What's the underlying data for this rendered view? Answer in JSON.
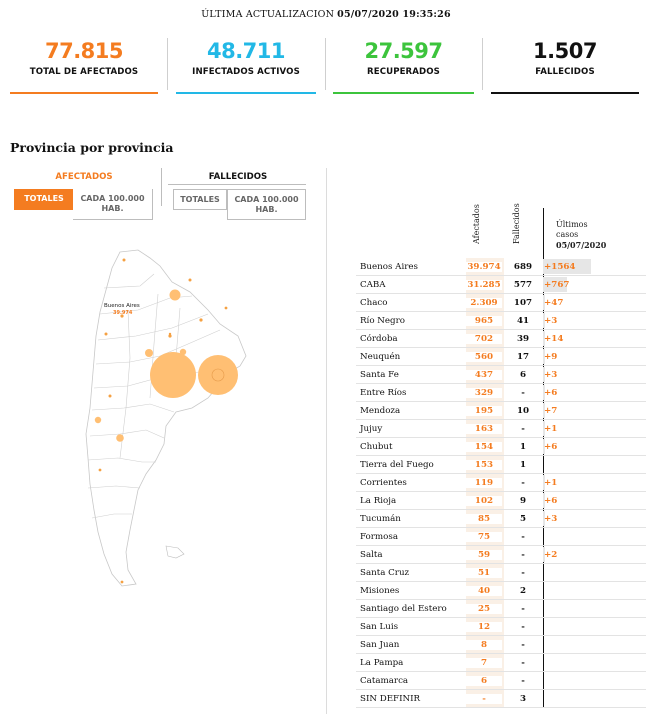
{
  "header": {
    "update_label": "ÚLTIMA ACTUALIZACION",
    "update_value": "05/07/2020 19:35:26"
  },
  "stats": [
    {
      "value": "77.815",
      "label": "TOTAL DE AFECTADOS",
      "color": "#f47c20"
    },
    {
      "value": "48.711",
      "label": "INFECTADOS ACTIVOS",
      "color": "#22b8e6"
    },
    {
      "value": "27.597",
      "label": "RECUPERADOS",
      "color": "#3cc43c"
    },
    {
      "value": "1.507",
      "label": "FALLECIDOS",
      "color": "#111111"
    }
  ],
  "section_title": "Provincia por provincia",
  "controls": {
    "afectados_label": "AFECTADOS",
    "fallecidos_label": "FALLECIDOS",
    "totales_label": "TOTALES",
    "per100k_line1": "CADA 100.000",
    "per100k_line2": "HAB."
  },
  "map": {
    "highlight_name": "Buenos Aires",
    "highlight_value": "39.974",
    "bubble_color": "#ffbf73",
    "dot_color": "#f5a142"
  },
  "table": {
    "headers": {
      "afectados": "Afectados",
      "fallecidos": "Fallecidos",
      "ultimos_line1": "Últimos",
      "ultimos_line2": "casos",
      "ultimos_date": "05/07/2020"
    },
    "rows": [
      {
        "name": "Buenos Aires",
        "afectados": "39.974",
        "fallecidos": "689",
        "nuevos": "+1564",
        "bar": 1564
      },
      {
        "name": "CABA",
        "afectados": "31.285",
        "fallecidos": "577",
        "nuevos": "+767",
        "bar": 767
      },
      {
        "name": "Chaco",
        "afectados": "2.309",
        "fallecidos": "107",
        "nuevos": "+47",
        "bar": 47
      },
      {
        "name": "Río Negro",
        "afectados": "965",
        "fallecidos": "41",
        "nuevos": "+3",
        "bar": 3
      },
      {
        "name": "Córdoba",
        "afectados": "702",
        "fallecidos": "39",
        "nuevos": "+14",
        "bar": 14
      },
      {
        "name": "Neuquén",
        "afectados": "560",
        "fallecidos": "17",
        "nuevos": "+9",
        "bar": 9
      },
      {
        "name": "Santa Fe",
        "afectados": "437",
        "fallecidos": "6",
        "nuevos": "+3",
        "bar": 3
      },
      {
        "name": "Entre Ríos",
        "afectados": "329",
        "fallecidos": "-",
        "nuevos": "+6",
        "bar": 6
      },
      {
        "name": "Mendoza",
        "afectados": "195",
        "fallecidos": "10",
        "nuevos": "+7",
        "bar": 7
      },
      {
        "name": "Jujuy",
        "afectados": "163",
        "fallecidos": "-",
        "nuevos": "+1",
        "bar": 1
      },
      {
        "name": "Chubut",
        "afectados": "154",
        "fallecidos": "1",
        "nuevos": "+6",
        "bar": 6
      },
      {
        "name": "Tierra del Fuego",
        "afectados": "153",
        "fallecidos": "1",
        "nuevos": "",
        "bar": 0
      },
      {
        "name": "Corrientes",
        "afectados": "119",
        "fallecidos": "-",
        "nuevos": "+1",
        "bar": 1
      },
      {
        "name": "La Rioja",
        "afectados": "102",
        "fallecidos": "9",
        "nuevos": "+6",
        "bar": 6
      },
      {
        "name": "Tucumán",
        "afectados": "85",
        "fallecidos": "5",
        "nuevos": "+3",
        "bar": 3
      },
      {
        "name": "Formosa",
        "afectados": "75",
        "fallecidos": "-",
        "nuevos": "",
        "bar": 0
      },
      {
        "name": "Salta",
        "afectados": "59",
        "fallecidos": "-",
        "nuevos": "+2",
        "bar": 2
      },
      {
        "name": "Santa Cruz",
        "afectados": "51",
        "fallecidos": "-",
        "nuevos": "",
        "bar": 0
      },
      {
        "name": "Misiones",
        "afectados": "40",
        "fallecidos": "2",
        "nuevos": "",
        "bar": 0
      },
      {
        "name": "Santiago del Estero",
        "afectados": "25",
        "fallecidos": "-",
        "nuevos": "",
        "bar": 0
      },
      {
        "name": "San Luis",
        "afectados": "12",
        "fallecidos": "-",
        "nuevos": "",
        "bar": 0
      },
      {
        "name": "San Juan",
        "afectados": "8",
        "fallecidos": "-",
        "nuevos": "",
        "bar": 0
      },
      {
        "name": "La Pampa",
        "afectados": "7",
        "fallecidos": "-",
        "nuevos": "",
        "bar": 0
      },
      {
        "name": "Catamarca",
        "afectados": "6",
        "fallecidos": "-",
        "nuevos": "",
        "bar": 0
      },
      {
        "name": "SIN DEFINIR",
        "afectados": "-",
        "fallecidos": "3",
        "nuevos": "",
        "bar": 0
      }
    ]
  }
}
